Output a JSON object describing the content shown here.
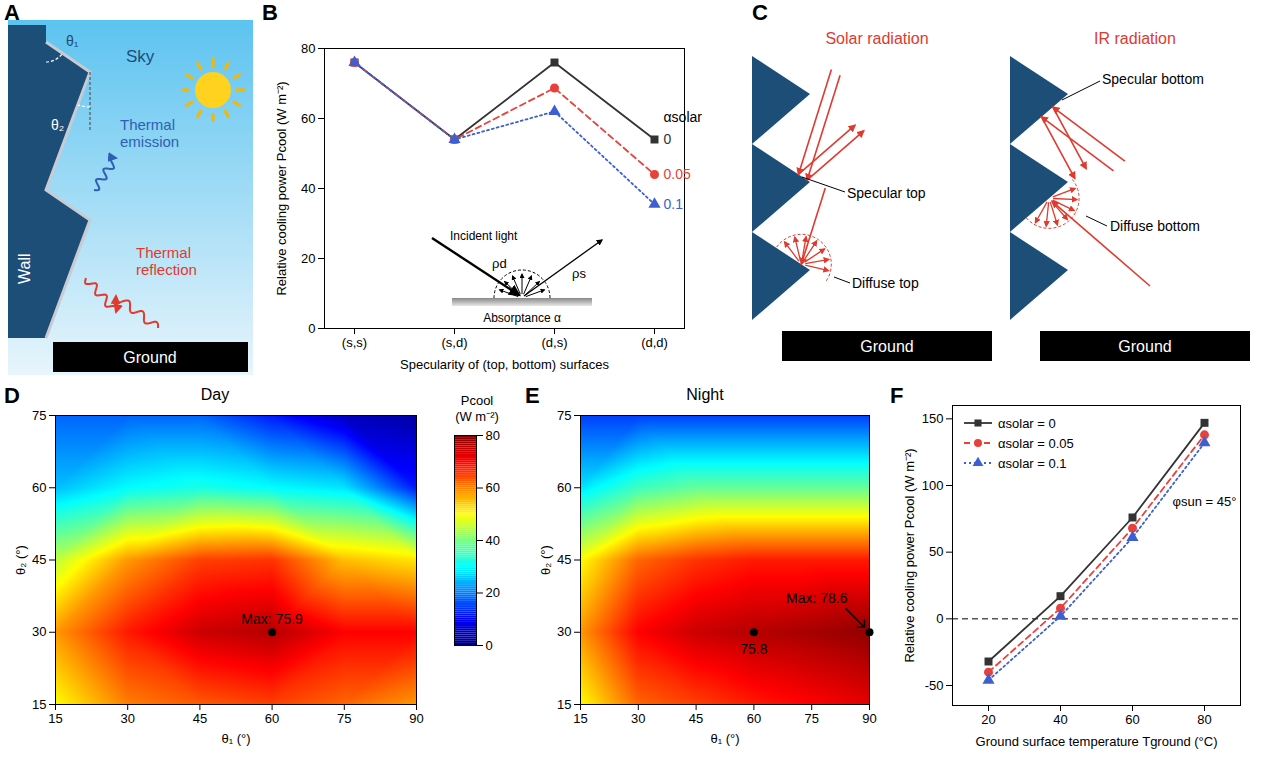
{
  "panel_letters": [
    "A",
    "B",
    "C",
    "D",
    "E",
    "F"
  ],
  "diagrams": {
    "A": {
      "sky": "Sky",
      "angles": [
        "θ₁",
        "θ₂"
      ],
      "wall": "Wall",
      "emission": "Thermal emission",
      "reflection": "Thermal reflection",
      "ground": "Ground"
    },
    "C": {
      "panels": [
        {
          "title": "Solar radiation",
          "labels": [
            "Specular top",
            "Diffuse top"
          ],
          "ground": "Ground"
        },
        {
          "title": "IR radiation",
          "labels": [
            "Specular bottom",
            "Diffuse bottom"
          ],
          "ground": "Ground"
        }
      ]
    }
  },
  "chart_data": [
    {
      "type": "line",
      "x_label": "Specularity of (top, bottom) surfaces",
      "y_label": "Relative cooling power Pcool (W m⁻²)",
      "categories": [
        "(s,s)",
        "(s,d)",
        "(d,s)",
        "(d,d)"
      ],
      "ylim": [
        0,
        80
      ],
      "yticks": [
        0,
        20,
        40,
        60,
        80
      ],
      "legend": "right",
      "legend_title": "αsolar",
      "series": [
        {
          "name": "0",
          "color": "#333333",
          "marker": "square",
          "line_style": "solid",
          "values": [
            76,
            54,
            76,
            54
          ]
        },
        {
          "name": "0.05",
          "color": "#e8413a",
          "marker": "circle",
          "line_style": "dashed",
          "values": [
            76,
            54,
            68.7,
            44
          ]
        },
        {
          "name": "0.1",
          "color": "#3d5fd1",
          "marker": "triangle",
          "line_style": "dotted",
          "values": [
            76,
            54,
            62,
            35.5
          ]
        }
      ],
      "inset": {
        "incident_light": "Incident light",
        "diffuse": "ρd",
        "specular": "ρs",
        "absorptance": "Absorptance α"
      }
    },
    {
      "type": "heatmap",
      "title": "Day",
      "x_label": "θ₁ (°)",
      "y_label": "θ₂ (°)",
      "x": [
        15,
        30,
        45,
        60,
        75,
        90
      ],
      "y": [
        15,
        30,
        45,
        60,
        75
      ],
      "values": [
        [
          50,
          60,
          63,
          65,
          62,
          58
        ],
        [
          58,
          68,
          74,
          75.9,
          70,
          70
        ],
        [
          45,
          58,
          65,
          66,
          55,
          52
        ],
        [
          25,
          30,
          32,
          30,
          28,
          12
        ],
        [
          18,
          18,
          18,
          12,
          5,
          3
        ]
      ],
      "xlim": [
        15,
        90
      ],
      "xticks": [
        15,
        30,
        45,
        60,
        75,
        90
      ],
      "ylim": [
        15,
        75
      ],
      "yticks": [
        15,
        30,
        45,
        60,
        75
      ],
      "colorbar": {
        "label": "Pcool (W m⁻²)",
        "range": [
          0,
          80
        ],
        "ticks": [
          0,
          20,
          40,
          60,
          80
        ]
      },
      "annotations": [
        {
          "x": 60,
          "y": 30,
          "text": "Max: 75.9",
          "position": "above"
        }
      ]
    },
    {
      "type": "heatmap",
      "title": "Night",
      "x_label": "θ₁ (°)",
      "y_label": "θ₂ (°)",
      "x": [
        15,
        30,
        45,
        60,
        75,
        90
      ],
      "y": [
        15,
        30,
        45,
        60,
        75
      ],
      "values": [
        [
          50,
          62,
          65,
          68,
          70,
          72
        ],
        [
          58,
          70,
          74,
          75.8,
          77,
          78.6
        ],
        [
          50,
          62,
          66,
          68,
          68,
          68
        ],
        [
          28,
          35,
          38,
          38,
          38,
          38
        ],
        [
          15,
          15,
          15,
          15,
          15,
          15
        ]
      ],
      "xlim": [
        15,
        90
      ],
      "xticks": [
        15,
        30,
        45,
        60,
        75,
        90
      ],
      "ylim": [
        15,
        75
      ],
      "yticks": [
        15,
        30,
        45,
        60,
        75
      ],
      "annotations": [
        {
          "x": 60,
          "y": 30,
          "text": "75.8",
          "position": "below"
        },
        {
          "x": 90,
          "y": 30,
          "text": "Max: 78.6",
          "position": "above-left"
        }
      ]
    },
    {
      "type": "line",
      "x_label": "Ground surface temperature Tground (°C)",
      "y_label": "Relative cooling power Pcool (W m⁻²)",
      "x": [
        20,
        40,
        60,
        80
      ],
      "xlim": [
        10,
        90
      ],
      "xticks": [
        20,
        40,
        60,
        80
      ],
      "ylim": [
        -65,
        160
      ],
      "yticks": [
        -50,
        0,
        50,
        100,
        150
      ],
      "legend": "top-left",
      "reference_lines": [
        0
      ],
      "annotations": [
        {
          "x": 80,
          "y": 88,
          "text": "φsun = 45°",
          "position": "center"
        }
      ],
      "series": [
        {
          "name": "αsolar = 0",
          "color": "#333333",
          "marker": "square",
          "line_style": "solid",
          "values": [
            -32,
            17,
            76,
            147
          ]
        },
        {
          "name": "αsolar = 0.05",
          "color": "#e8413a",
          "marker": "circle",
          "line_style": "dashed",
          "values": [
            -40,
            8,
            68,
            138
          ]
        },
        {
          "name": "αsolar = 0.1",
          "color": "#3d5fd1",
          "marker": "triangle",
          "line_style": "dotted",
          "values": [
            -46,
            2,
            61,
            132
          ]
        }
      ]
    }
  ]
}
